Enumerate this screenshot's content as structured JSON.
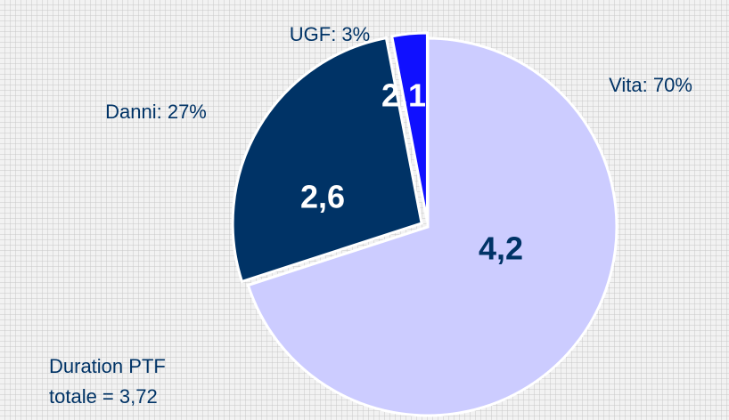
{
  "chart_data": {
    "type": "pie",
    "values": [
      70,
      27,
      3
    ],
    "value_labels": [
      "Vita: 70%",
      "Danni: 27%",
      "UGF: 3%"
    ],
    "colors": [
      "#ccccff",
      "#003366",
      "#1010ff"
    ],
    "durations": [
      {
        "value": 4.2,
        "label": "4,2"
      },
      {
        "value": 2.6,
        "label": "2,6"
      },
      {
        "value": 2.1,
        "label": "2,1"
      }
    ],
    "annotation": [
      "Duration PTF",
      "totale = 3,72"
    ]
  }
}
